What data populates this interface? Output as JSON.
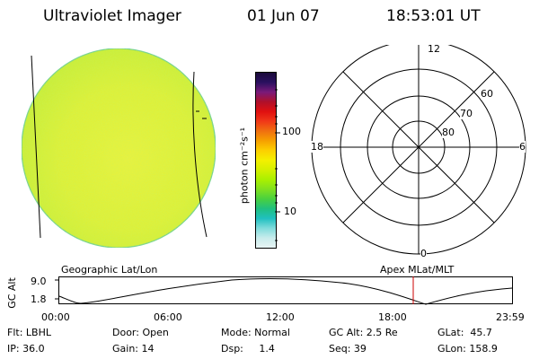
{
  "header": {
    "title": "Ultraviolet Imager",
    "date": "01 Jun 07",
    "time": "18:53:01 UT"
  },
  "colorbar": {
    "unit_label": "photon cm⁻²s⁻¹",
    "tick_labels": [
      "100",
      "10"
    ],
    "colors_top_to_bottom": [
      "#1a0a3a",
      "#2a1060",
      "#7a1a7a",
      "#b0102a",
      "#e01010",
      "#f03818",
      "#f07010",
      "#f6a000",
      "#fcd000",
      "#f4f000",
      "#d4f000",
      "#aaf000",
      "#80e020",
      "#48d040",
      "#20c080",
      "#20c0c0",
      "#80dcdc",
      "#c8ecec",
      "#e8f4f4"
    ]
  },
  "polar_grid": {
    "time_labels": {
      "top": "12",
      "left": "18",
      "right": "6",
      "bottom": "0"
    },
    "lat_labels": [
      "60",
      "70",
      "80"
    ]
  },
  "map_labels": {
    "left": "Geographic Lat/Lon",
    "right": "Apex  MLat/MLT"
  },
  "alt_plot": {
    "axis_label": "GC Alt",
    "y_ticks": [
      "9.0",
      "1.8"
    ],
    "x_ticks": [
      "00:00",
      "06:00",
      "12:00",
      "18:00",
      "23:59"
    ],
    "current_time_marker_color": "#cc0000"
  },
  "info_rows": [
    [
      "Flt: LBHL",
      "Door: Open",
      "Mode: Normal",
      "GC Alt: 2.5 Re",
      "GLat:  45.7"
    ],
    [
      "IP: 36.0",
      "Gain: 14",
      "Dsp:     1.4",
      "Seq: 39",
      "GLon: 158.9"
    ]
  ]
}
